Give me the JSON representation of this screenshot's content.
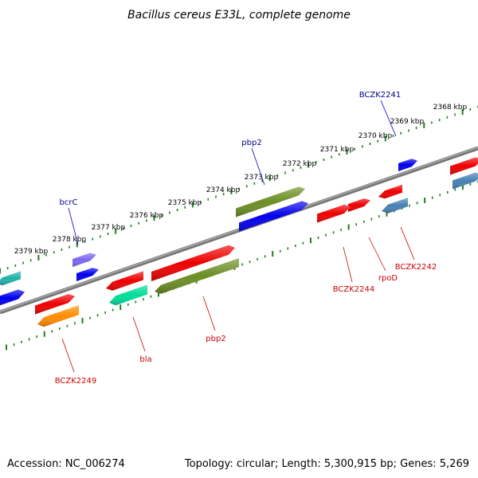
{
  "title": "Bacillus cereus E33L, complete genome",
  "accession": "Accession: NC_006274",
  "summary": "Topology: circular; Length: 5,300,915 bp; Genes: 5,269",
  "colors": {
    "backbone": "#8a8a8a",
    "tick": "#1d7f1d",
    "label_top": "#00008b",
    "label_bottom": "#cc0000",
    "leader_top": "#0000cc",
    "leader_bottom": "#cc0000"
  },
  "scale_labels": [
    "2368 kbp",
    "2369 kbp",
    "2370 kbp",
    "2371 kbp",
    "2372 kbp",
    "2373 kbp",
    "2374 kbp",
    "2375 kbp",
    "2376 kbp",
    "2377 kbp",
    "2378 kbp",
    "2379 kbp"
  ],
  "top_labels": [
    "BCZK2241",
    "pbp2",
    "bcrC"
  ],
  "bottom_labels": [
    "BCZK2242",
    "rpoD",
    "BCZK2244",
    "pbp2",
    "bla",
    "BCZK2249"
  ],
  "gene_colors": {
    "red": "#ee0000",
    "blue": "#0000ee",
    "olive": "#6b8e23",
    "slate": "#7b68ee",
    "steel": "#4682b4",
    "teal": "#20b2aa",
    "spring": "#00dd99",
    "orange": "#ff8c00"
  }
}
